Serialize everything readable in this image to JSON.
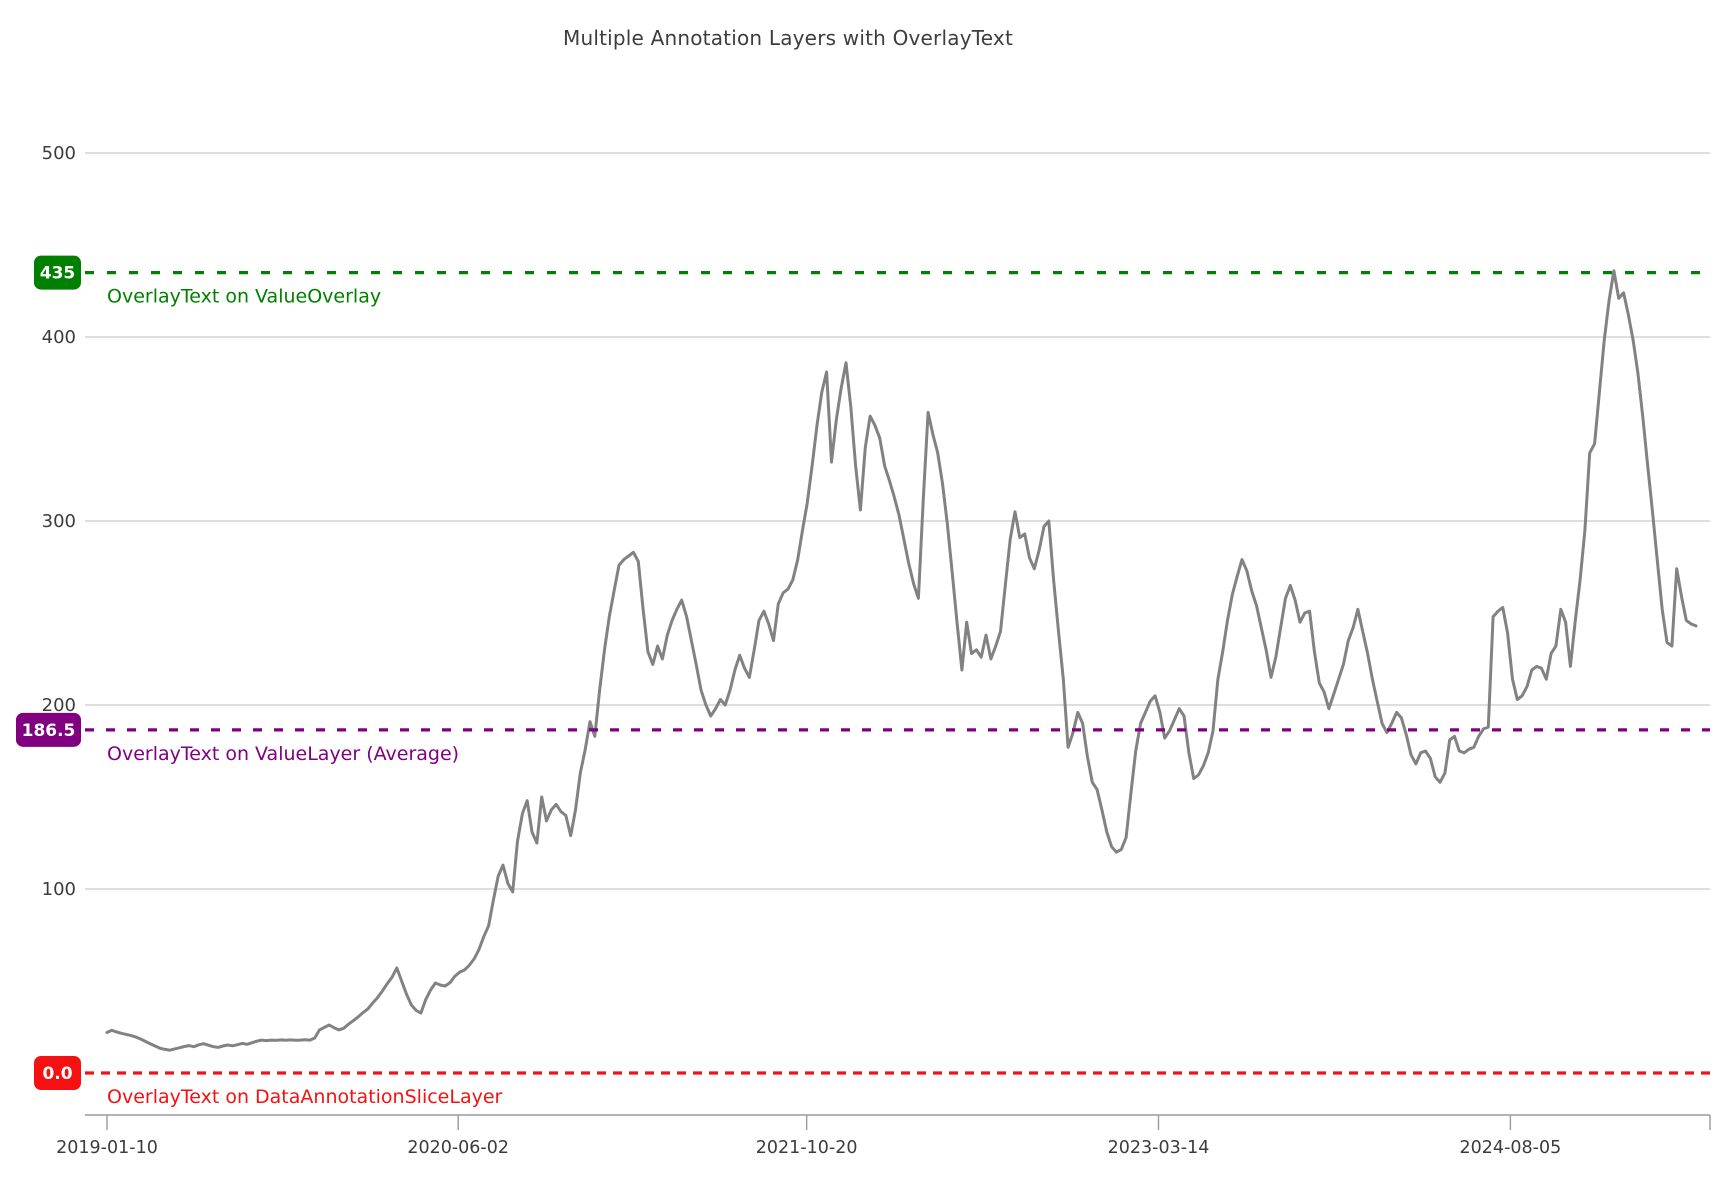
{
  "title": "Multiple Annotation Layers with OverlayText",
  "chart_data": {
    "type": "line",
    "title": "Multiple Annotation Layers with OverlayText",
    "xlabel": "",
    "ylabel": "",
    "grid": true,
    "legend": false,
    "line_color": "#828282",
    "x_ticks": [
      {
        "label": "2019-01-10",
        "week": 0
      },
      {
        "label": "2020-06-02",
        "week": 72.71
      },
      {
        "label": "2021-10-20",
        "week": 144.86
      },
      {
        "label": "2023-03-14",
        "week": 217.71
      },
      {
        "label": "2024-08-05",
        "week": 290.57
      }
    ],
    "y_ticks": [
      100,
      200,
      300,
      400,
      500
    ],
    "ylim": [
      -23,
      529
    ],
    "annotations": [
      {
        "id": "value-overlay",
        "value": 435,
        "label": "435",
        "text": "OverlayText on ValueOverlay",
        "color": "#008000",
        "dash": "9 13"
      },
      {
        "id": "value-layer-average",
        "value": 186.5,
        "label": "186.5",
        "text": "OverlayText on ValueLayer (Average)",
        "color": "#800080",
        "dash": "9 12"
      },
      {
        "id": "data-annotation-slice-layer",
        "value": 0,
        "label": "0.0",
        "text": "OverlayText on DataAnnotationSliceLayer",
        "color": "#f51111",
        "dash": "9 7"
      }
    ],
    "series": [
      {
        "name": "value",
        "start_date": "2019-01-10",
        "interval_days": 7,
        "values": [
          22.0,
          23.2,
          22.3,
          21.6,
          21.0,
          20.3,
          19.5,
          18.4,
          17.1,
          15.8,
          14.6,
          13.5,
          12.8,
          12.4,
          13.1,
          13.7,
          14.4,
          14.9,
          14.3,
          15.3,
          15.9,
          15.1,
          14.3,
          13.9,
          14.7,
          15.2,
          14.8,
          15.4,
          16.1,
          15.6,
          16.4,
          17.3,
          17.9,
          17.6,
          17.9,
          17.7,
          18.0,
          17.8,
          18.0,
          17.8,
          17.9,
          18.1,
          17.9,
          19.0,
          23.4,
          24.8,
          26.1,
          24.6,
          23.4,
          24.3,
          26.5,
          28.4,
          30.5,
          32.8,
          34.8,
          38.0,
          41.0,
          44.5,
          48.5,
          52.0,
          57.1,
          50.0,
          43.0,
          37.0,
          34.0,
          32.6,
          40.0,
          45.1,
          48.9,
          47.8,
          47.3,
          49.0,
          52.5,
          54.8,
          56.0,
          58.5,
          62.0,
          67.0,
          74.0,
          80.0,
          94.0,
          107.0,
          113.0,
          103.0,
          98.4,
          126.0,
          141.0,
          148.0,
          131.0,
          125.0,
          150.0,
          137.0,
          143.0,
          146.0,
          142.0,
          140.0,
          129.0,
          143.0,
          163.0,
          175.5,
          191.0,
          183.0,
          208.0,
          230.0,
          248.0,
          262.0,
          276.0,
          279.0,
          281.0,
          283.0,
          278.0,
          252.0,
          229.0,
          222.0,
          232.0,
          225.0,
          238.0,
          246.0,
          252.0,
          257.0,
          248.0,
          235.0,
          222.0,
          208.0,
          200.0,
          194.0,
          198.0,
          203.0,
          200.0,
          208.0,
          219.0,
          227.0,
          220.0,
          215.0,
          230.0,
          246.0,
          251.0,
          244.0,
          235.0,
          255.0,
          261.0,
          263.0,
          268.0,
          279.0,
          295.0,
          310.0,
          330.0,
          352.0,
          370.0,
          381.0,
          332.0,
          355.0,
          372.0,
          386.0,
          362.0,
          330.0,
          306.0,
          340.0,
          357.0,
          352.0,
          345.0,
          330.0,
          322.0,
          313.0,
          303.0,
          290.0,
          277.0,
          266.0,
          258.0,
          311.0,
          359.0,
          347.0,
          337.0,
          320.0,
          298.0,
          272.0,
          245.0,
          219.0,
          245.0,
          228.0,
          230.0,
          226.0,
          238.0,
          225.0,
          232.0,
          240.0,
          265.0,
          290.0,
          305.0,
          291.0,
          293.0,
          280.0,
          274.0,
          284.0,
          297.0,
          300.0,
          268.0,
          240.0,
          214.0,
          177.0,
          185.0,
          196.0,
          190.0,
          172.0,
          158.0,
          154.0,
          143.0,
          131.0,
          123.0,
          120.0,
          121.5,
          128.0,
          152.0,
          175.0,
          190.0,
          196.0,
          202.0,
          205.0,
          196.0,
          182.0,
          186.0,
          192.0,
          198.0,
          194.0,
          174.0,
          160.0,
          162.0,
          167.0,
          174.0,
          186.0,
          214.0,
          229.0,
          246.0,
          260.0,
          270.0,
          279.0,
          273.0,
          262.0,
          254.0,
          242.0,
          230.0,
          215.0,
          226.0,
          242.0,
          258.0,
          265.0,
          257.0,
          245.0,
          250.0,
          251.0,
          229.0,
          212.0,
          207.0,
          198.0,
          206.0,
          214.0,
          222.0,
          235.0,
          242.0,
          252.0,
          240.0,
          228.0,
          214.0,
          202.0,
          190.0,
          185.0,
          190.0,
          196.0,
          193.0,
          184.0,
          173.0,
          168.0,
          174.0,
          175.0,
          171.0,
          161.0,
          158.0,
          163.0,
          181.0,
          183.0,
          175.0,
          174.0,
          176.0,
          177.0,
          183.0,
          187.0,
          188.0,
          248.0,
          251.0,
          253.0,
          239.0,
          214.0,
          203.0,
          205.0,
          210.0,
          219.0,
          221.0,
          220.0,
          214.0,
          228.0,
          232.0,
          252.0,
          245.0,
          221.0,
          246.0,
          268.0,
          295.0,
          337.0,
          342.0,
          370.0,
          398.0,
          420.0,
          436.0,
          421.0,
          424.0,
          412.0,
          398.0,
          380.0,
          356.0,
          330.0,
          305.0,
          278.0,
          252.0,
          234.0,
          232.0,
          274.0,
          259.0,
          246.0,
          244.0,
          243.0
        ]
      }
    ],
    "colors": {
      "grid": "#d4d4d4",
      "axis": "#9a9a9a",
      "tick_text": "#3c3c3c",
      "title_text": "#3d3d3d"
    }
  }
}
